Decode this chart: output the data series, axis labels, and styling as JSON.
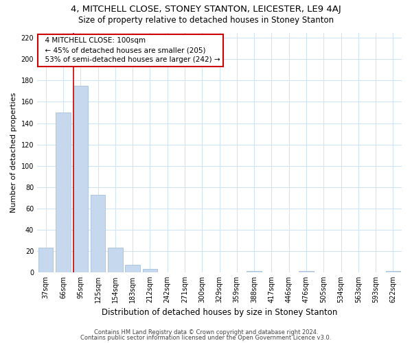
{
  "title": "4, MITCHELL CLOSE, STONEY STANTON, LEICESTER, LE9 4AJ",
  "subtitle": "Size of property relative to detached houses in Stoney Stanton",
  "xlabel": "Distribution of detached houses by size in Stoney Stanton",
  "ylabel": "Number of detached properties",
  "bar_labels": [
    "37sqm",
    "66sqm",
    "95sqm",
    "125sqm",
    "154sqm",
    "183sqm",
    "212sqm",
    "242sqm",
    "271sqm",
    "300sqm",
    "329sqm",
    "359sqm",
    "388sqm",
    "417sqm",
    "446sqm",
    "476sqm",
    "505sqm",
    "534sqm",
    "563sqm",
    "593sqm",
    "622sqm"
  ],
  "bar_values": [
    23,
    150,
    175,
    73,
    23,
    7,
    3,
    0,
    0,
    0,
    0,
    0,
    1,
    0,
    0,
    1,
    0,
    0,
    0,
    0,
    1
  ],
  "bar_color": "#c5d8ee",
  "bar_edge_color": "#9ab8d8",
  "grid_color": "#d0e4f7",
  "reference_line_color": "#cc0000",
  "annotation_title": "4 MITCHELL CLOSE: 100sqm",
  "annotation_line1": "← 45% of detached houses are smaller (205)",
  "annotation_line2": "53% of semi-detached houses are larger (242) →",
  "annotation_box_color": "#ffffff",
  "annotation_box_edge": "#cc0000",
  "ylim": [
    0,
    225
  ],
  "yticks": [
    0,
    20,
    40,
    60,
    80,
    100,
    120,
    140,
    160,
    180,
    200,
    220
  ],
  "footer1": "Contains HM Land Registry data © Crown copyright and database right 2024.",
  "footer2": "Contains public sector information licensed under the Open Government Licence v3.0.",
  "fig_bg": "#ffffff",
  "title_fontsize": 9.5,
  "subtitle_fontsize": 8.5,
  "tick_fontsize": 7,
  "ylabel_fontsize": 8,
  "xlabel_fontsize": 8.5,
  "annotation_fontsize": 7.5,
  "footer_fontsize": 6
}
